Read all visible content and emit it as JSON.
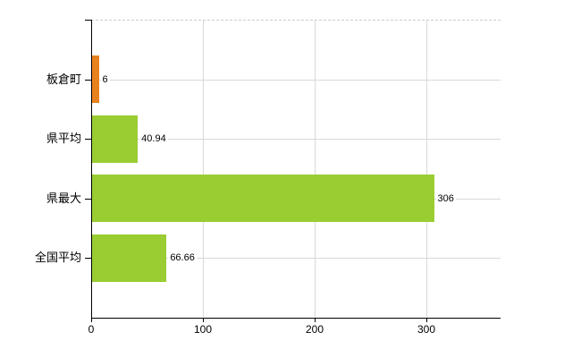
{
  "chart_data": {
    "type": "bar",
    "orientation": "horizontal",
    "title": "",
    "xlabel": "",
    "ylabel": "",
    "categories": [
      "板倉町",
      "県平均",
      "県最大",
      "全国平均"
    ],
    "values": [
      6,
      40.94,
      306,
      66.66
    ],
    "value_labels": [
      "6",
      "40.94",
      "306",
      "66.66"
    ],
    "bar_colors": [
      "#e8821e",
      "#9acd32",
      "#9acd32",
      "#9acd32"
    ],
    "x_ticks": [
      0,
      100,
      200,
      300
    ],
    "x_tick_labels": [
      "0",
      "100",
      "200",
      "300"
    ],
    "xlim": [
      0,
      366.4
    ],
    "grid": true,
    "legend": false,
    "colors": {
      "background": "#ffffff",
      "gridline": "#d9d9d9",
      "axis": "#000000",
      "tick": "#000000",
      "text": "#000000",
      "highlight_bar": "#e8821e",
      "default_bar": "#9acd32"
    }
  }
}
